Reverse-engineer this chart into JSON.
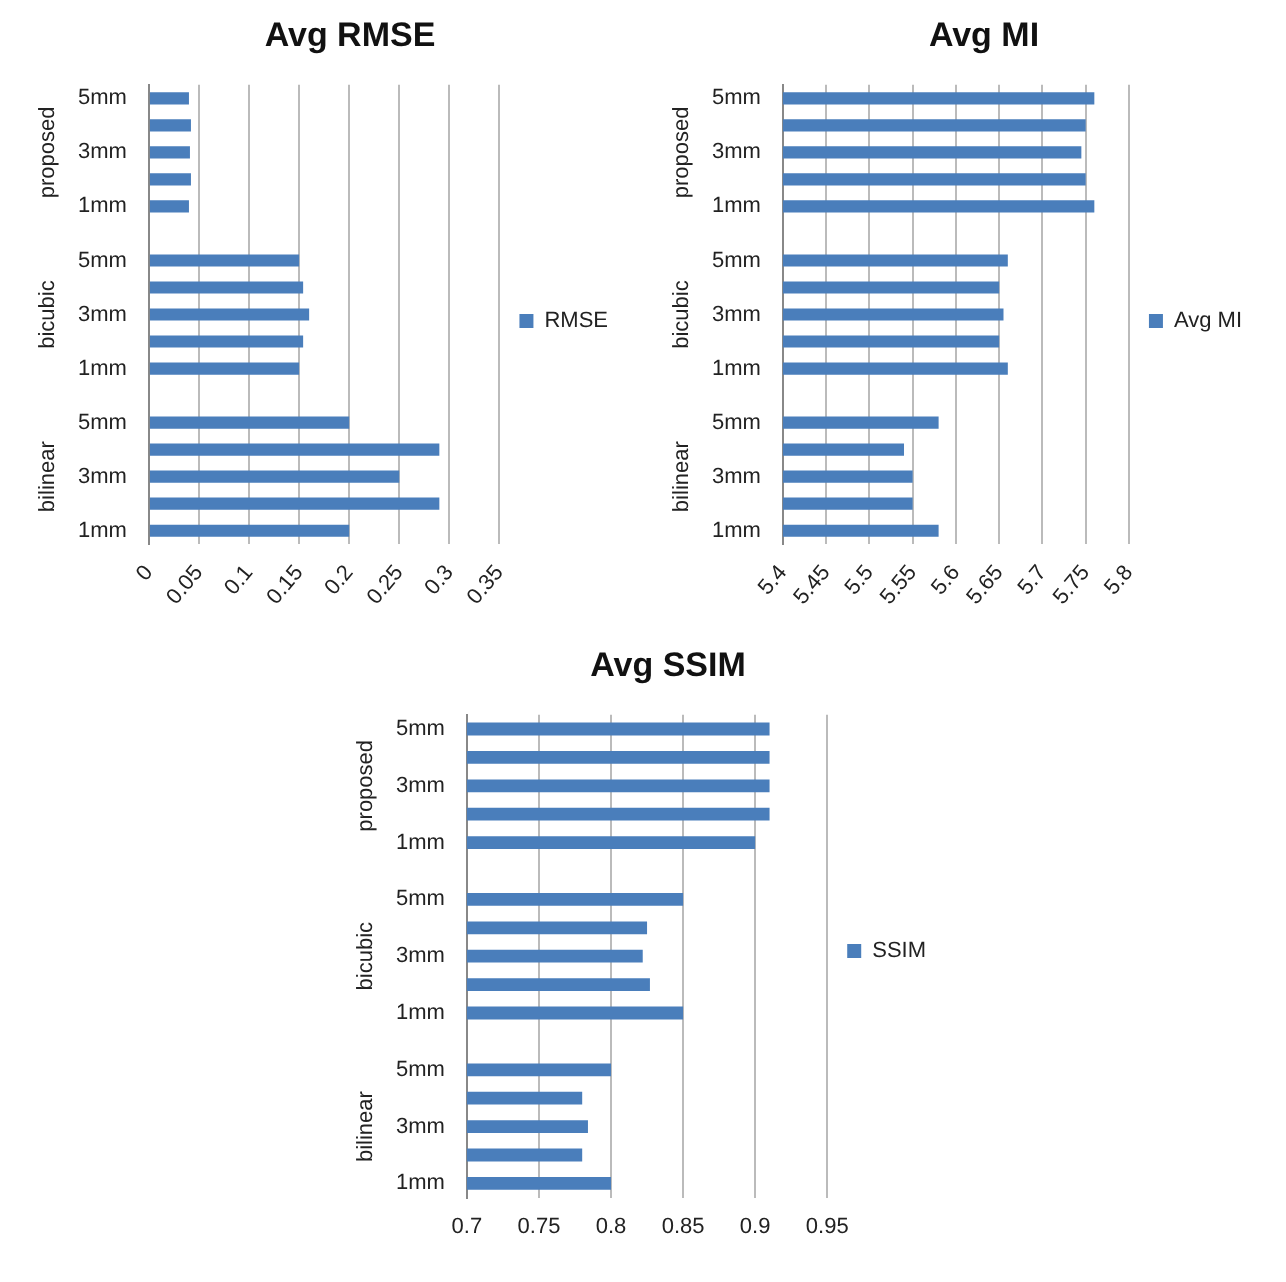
{
  "chart_data": [
    {
      "type": "bar",
      "title": "Avg RMSE",
      "orientation": "horizontal",
      "categories": [
        "5mm",
        null,
        "3mm",
        null,
        "1mm",
        null,
        "5mm",
        null,
        "3mm",
        null,
        "1mm",
        null,
        "5mm",
        null,
        "3mm",
        null,
        "1mm"
      ],
      "series": [
        {
          "name": "RMSE",
          "color": "#4a7ebb",
          "values": [
            0.04,
            0.042,
            0.041,
            0.042,
            0.04,
            null,
            0.15,
            0.154,
            0.16,
            0.154,
            0.15,
            null,
            0.2,
            0.29,
            0.25,
            0.29,
            0.2
          ]
        }
      ],
      "xlim": [
        0,
        0.35
      ],
      "xticks": [
        0,
        0.05,
        0.1,
        0.15,
        0.2,
        0.25,
        0.3,
        0.35
      ],
      "grid": "x",
      "legend": "right",
      "annotations": [
        "proposed",
        "bicubic",
        "bilinear"
      ]
    },
    {
      "type": "bar",
      "title": "Avg MI",
      "orientation": "horizontal",
      "categories": [
        "5mm",
        null,
        "3mm",
        null,
        "1mm",
        null,
        "5mm",
        null,
        "3mm",
        null,
        "1mm",
        null,
        "5mm",
        null,
        "3mm",
        null,
        "1mm"
      ],
      "series": [
        {
          "name": "Avg MI",
          "color": "#4a7ebb",
          "values": [
            5.76,
            5.75,
            5.745,
            5.75,
            5.76,
            null,
            5.66,
            5.65,
            5.655,
            5.65,
            5.66,
            null,
            5.58,
            5.54,
            5.55,
            5.55,
            5.58
          ]
        }
      ],
      "xlim": [
        5.4,
        5.8
      ],
      "xticks": [
        5.4,
        5.45,
        5.5,
        5.55,
        5.6,
        5.65,
        5.7,
        5.75,
        5.8
      ],
      "grid": "x",
      "legend": "right",
      "annotations": [
        "proposed",
        "bicubic",
        "bilinear"
      ]
    },
    {
      "type": "bar",
      "title": "Avg SSIM",
      "orientation": "horizontal",
      "categories": [
        "5mm",
        null,
        "3mm",
        null,
        "1mm",
        null,
        "5mm",
        null,
        "3mm",
        null,
        "1mm",
        null,
        "5mm",
        null,
        "3mm",
        null,
        "1mm"
      ],
      "series": [
        {
          "name": "SSIM",
          "color": "#4a7ebb",
          "values": [
            0.91,
            0.91,
            0.91,
            0.91,
            0.9,
            null,
            0.85,
            0.825,
            0.822,
            0.827,
            0.85,
            null,
            0.8,
            0.78,
            0.784,
            0.78,
            0.8
          ]
        }
      ],
      "xlim": [
        0.7,
        0.95
      ],
      "xticks": [
        0.7,
        0.75,
        0.8,
        0.85,
        0.9,
        0.95
      ],
      "grid": "x",
      "legend": "right",
      "annotations": [
        "proposed",
        "bicubic",
        "bilinear"
      ]
    }
  ]
}
